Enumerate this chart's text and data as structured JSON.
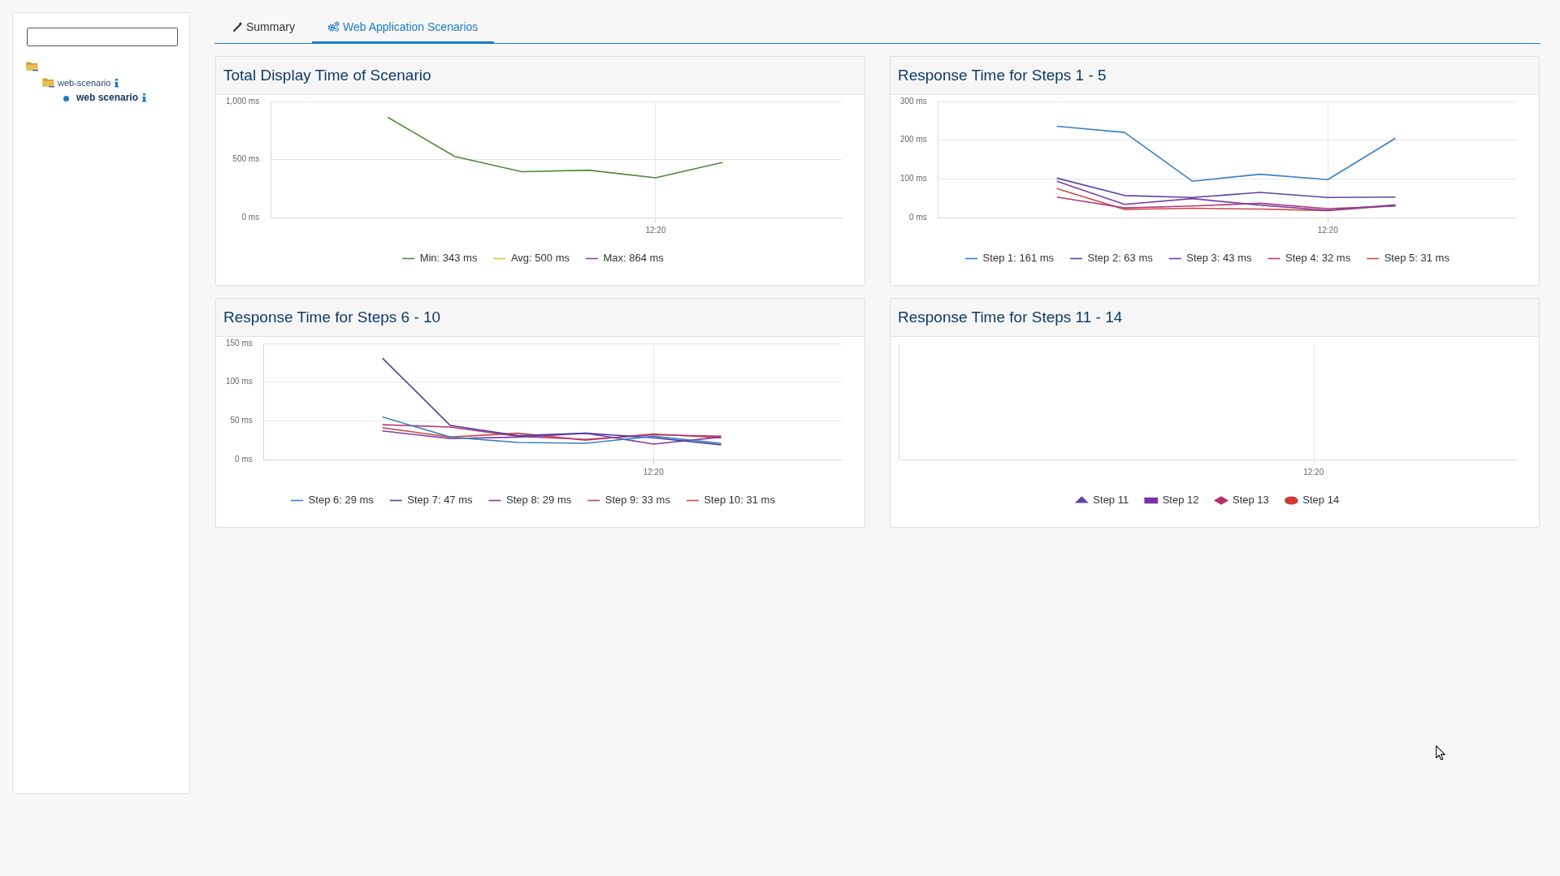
{
  "chart_data": [
    {
      "type": "other",
      "annotations": [
        "web-scenario",
        "web scenario"
      ]
    },
    {
      "type": "other",
      "annotations": [
        "Summary",
        "Web Application Scenarios"
      ]
    },
    {
      "type": "line",
      "title": "Total Display Time of Scenario",
      "categories": [
        null,
        null,
        null,
        null,
        "12:20",
        null
      ],
      "ylim": [
        0,
        1000
      ],
      "yticks": [
        {
          "value": 0,
          "label": "0 ms"
        },
        {
          "value": 500,
          "label": "500 ms"
        },
        {
          "value": 1000,
          "label": "1,000 ms"
        }
      ],
      "grid": true,
      "legend": "bottom",
      "series": [
        {
          "name": "Min: 343 ms",
          "color": "#4e8a3a",
          "values": [
            864,
            526,
            395,
            408,
            343,
            475
          ]
        },
        {
          "name": "Avg: 500 ms",
          "color": "#e6c34d",
          "values": [
            null,
            null,
            null,
            null,
            null,
            null
          ]
        },
        {
          "name": "Max: 864 ms",
          "color": "#7d4aa0",
          "values": [
            null,
            null,
            null,
            null,
            null,
            null
          ]
        }
      ]
    },
    {
      "type": "line",
      "title": "Response Time for Steps 1 - 5",
      "categories": [
        null,
        null,
        null,
        null,
        "12:20",
        null
      ],
      "ylim": [
        0,
        300
      ],
      "yticks": [
        {
          "value": 0,
          "label": "0 ms"
        },
        {
          "value": 100,
          "label": "100 ms"
        },
        {
          "value": 200,
          "label": "200 ms"
        },
        {
          "value": 300,
          "label": "300 ms"
        }
      ],
      "grid": true,
      "legend": "bottom",
      "series": [
        {
          "name": "Step 1: 161 ms",
          "color": "#3b80c3",
          "values": [
            236,
            220,
            94,
            112,
            98,
            205
          ]
        },
        {
          "name": "Step 2: 63 ms",
          "color": "#5b44a6",
          "values": [
            102,
            57,
            52,
            65,
            52,
            53
          ]
        },
        {
          "name": "Step 3: 43 ms",
          "color": "#7d3da3",
          "values": [
            94,
            34,
            49,
            32,
            19,
            33
          ]
        },
        {
          "name": "Step 4: 32 ms",
          "color": "#b33b79",
          "values": [
            53,
            25,
            30,
            37,
            23,
            30
          ]
        },
        {
          "name": "Step 5: 31 ms",
          "color": "#cc4a45",
          "values": [
            75,
            21,
            24,
            22,
            18,
            31
          ]
        }
      ]
    },
    {
      "type": "line",
      "title": "Response Time for Steps 6 - 10",
      "categories": [
        null,
        null,
        null,
        null,
        "12:20",
        null
      ],
      "ylim": [
        0,
        150
      ],
      "yticks": [
        {
          "value": 0,
          "label": "0 ms"
        },
        {
          "value": 50,
          "label": "50 ms"
        },
        {
          "value": 100,
          "label": "100 ms"
        },
        {
          "value": 150,
          "label": "150 ms"
        }
      ],
      "grid": true,
      "legend": "bottom",
      "series": [
        {
          "name": "Step 6: 29 ms",
          "color": "#3b80c3",
          "values": [
            55,
            29,
            22,
            21,
            30,
            21
          ]
        },
        {
          "name": "Step 7: 47 ms",
          "color": "#4f3e9e",
          "values": [
            131,
            44,
            31,
            34,
            28,
            19
          ]
        },
        {
          "name": "Step 8: 29 ms",
          "color": "#7d3da3",
          "values": [
            37,
            27,
            29,
            34,
            20,
            29
          ]
        },
        {
          "name": "Step 9: 33 ms",
          "color": "#b33b79",
          "values": [
            45,
            42,
            30,
            26,
            32,
            30
          ]
        },
        {
          "name": "Step 10: 31 ms",
          "color": "#cc4a45",
          "values": [
            41,
            29,
            34,
            25,
            33,
            28
          ]
        }
      ]
    },
    {
      "type": "other",
      "title": "Response Time for Steps 11 - 14",
      "annotations": [
        "12:20"
      ],
      "legend": "bottom",
      "series": [
        {
          "name": "Step 11",
          "color": "#5b44a6",
          "marker": "triangle"
        },
        {
          "name": "Step 12",
          "color": "#7d2fa8",
          "marker": "square"
        },
        {
          "name": "Step 13",
          "color": "#b8306c",
          "marker": "diamond"
        },
        {
          "name": "Step 14",
          "color": "#cc3a33",
          "marker": "circle"
        }
      ]
    }
  ]
}
